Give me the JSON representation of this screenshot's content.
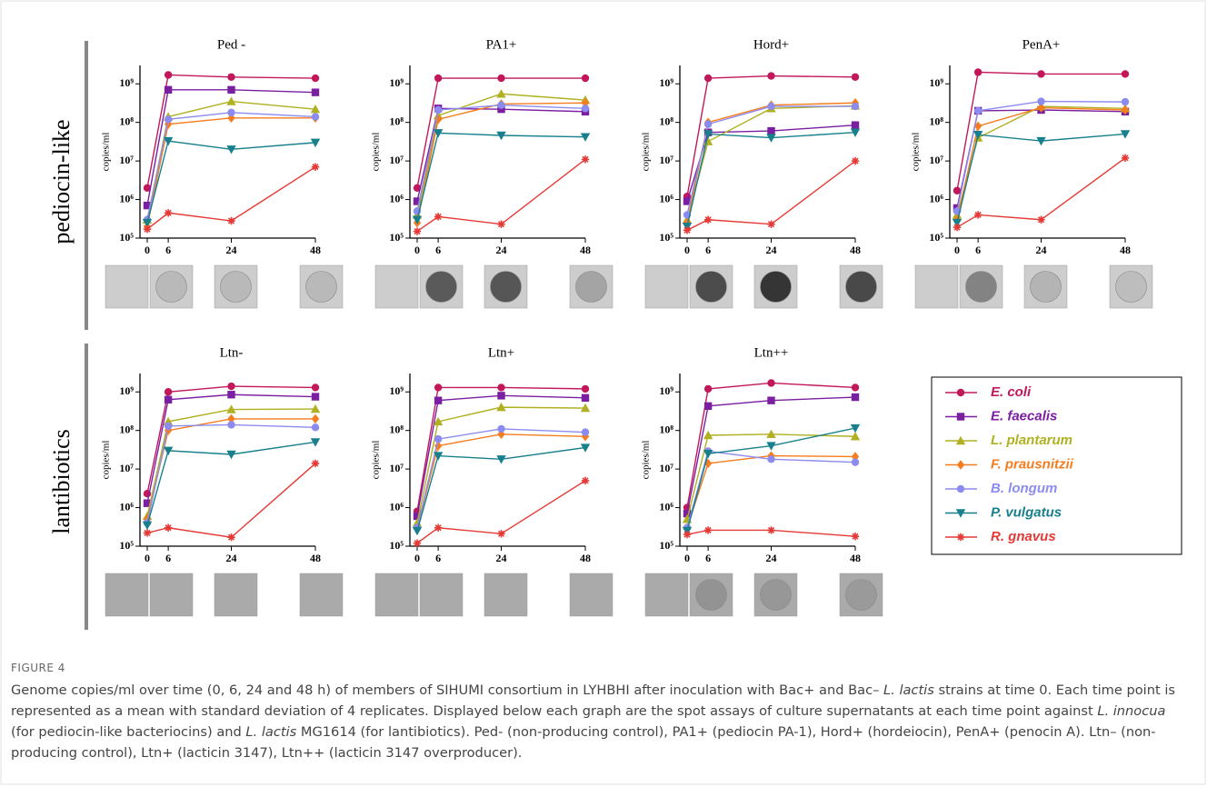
{
  "row_labels": [
    "pediocin-like",
    "lantibiotics"
  ],
  "figure_label": "FIGURE 4",
  "caption": [
    "Genome copies/ml over time (0, 6, 24 and 48 h) of members of SIHUMI consortium in LYHBHI after inoculation with Bac+ and Bac– ",
    "L. lactis",
    " strains at time 0. Each time point is represented as a mean with standard deviation of 4 replicates. Displayed below each graph are the spot assays of culture supernatants at each time point against ",
    "L. innocua",
    " (for pediocin-like bacteriocins) and ",
    "L. lactis",
    " MG1614 (for lantibiotics). Ped- (non-producing control), PA1+ (pediocin PA-1), Hord+ (hordeiocin), PenA+ (penocin A). Ltn– (non-producing control), Ltn+ (lacticin 3147), Ltn++ (lacticin 3147 overproducer)."
  ],
  "chart_data": [
    {
      "type": "line",
      "title": "Ped -",
      "y_label": "copies/ml",
      "log_y": true,
      "x": [
        0,
        6,
        24,
        48
      ],
      "xlim": [
        0,
        48
      ],
      "xticks": [
        0,
        6,
        24,
        48
      ],
      "ylim": [
        100000.0,
        3000000000.0
      ],
      "yticks": [
        {
          "value": 100000.0,
          "label": "10⁵"
        },
        {
          "value": 1000000.0,
          "label": "10⁶"
        },
        {
          "value": 10000000.0,
          "label": "10⁷"
        },
        {
          "value": 100000000.0,
          "label": "10⁸"
        },
        {
          "value": 1000000000.0,
          "label": "10⁹"
        }
      ],
      "series": [
        {
          "name": "E. coli",
          "color": "#c2185b",
          "marker": "circle",
          "values": [
            2000000.0,
            1700000000.0,
            1500000000.0,
            1400000000.0
          ]
        },
        {
          "name": "E. faecalis",
          "color": "#7b1fa2",
          "marker": "square",
          "values": [
            700000.0,
            700000000.0,
            700000000.0,
            600000000.0
          ]
        },
        {
          "name": "L. plantarum",
          "color": "#b0b020",
          "marker": "triangle",
          "values": [
            300000.0,
            140000000.0,
            350000000.0,
            220000000.0
          ]
        },
        {
          "name": "F. prausnitzii",
          "color": "#f57c1f",
          "marker": "diamond",
          "values": [
            200000.0,
            90000000.0,
            130000000.0,
            130000000.0
          ]
        },
        {
          "name": "B. longum",
          "color": "#8c8cf0",
          "marker": "circle",
          "values": [
            300000.0,
            120000000.0,
            180000000.0,
            140000000.0
          ]
        },
        {
          "name": "P. vulgatus",
          "color": "#17808c",
          "marker": "triangle-down",
          "values": [
            250000.0,
            33000000.0,
            20000000.0,
            30000000.0
          ]
        },
        {
          "name": "R. gnavus",
          "color": "#e53935",
          "marker": "star",
          "values": [
            170000.0,
            450000.0,
            280000.0,
            7000000.0
          ]
        }
      ]
    },
    {
      "type": "line",
      "title": "PA1+",
      "y_label": "copies/ml",
      "log_y": true,
      "x": [
        0,
        6,
        24,
        48
      ],
      "xlim": [
        0,
        48
      ],
      "xticks": [
        0,
        6,
        24,
        48
      ],
      "ylim": [
        100000.0,
        3000000000.0
      ],
      "yticks": [
        {
          "value": 100000.0,
          "label": "10⁵"
        },
        {
          "value": 1000000.0,
          "label": "10⁶"
        },
        {
          "value": 10000000.0,
          "label": "10⁷"
        },
        {
          "value": 100000000.0,
          "label": "10⁸"
        },
        {
          "value": 1000000000.0,
          "label": "10⁹"
        }
      ],
      "series": [
        {
          "name": "E. coli",
          "color": "#c2185b",
          "marker": "circle",
          "values": [
            2000000.0,
            1400000000.0,
            1400000000.0,
            1400000000.0
          ]
        },
        {
          "name": "E. faecalis",
          "color": "#7b1fa2",
          "marker": "square",
          "values": [
            900000.0,
            230000000.0,
            220000000.0,
            190000000.0
          ]
        },
        {
          "name": "L. plantarum",
          "color": "#b0b020",
          "marker": "triangle",
          "values": [
            400000.0,
            150000000.0,
            550000000.0,
            380000000.0
          ]
        },
        {
          "name": "F. prausnitzii",
          "color": "#f57c1f",
          "marker": "diamond",
          "values": [
            250000.0,
            120000000.0,
            300000000.0,
            320000000.0
          ]
        },
        {
          "name": "B. longum",
          "color": "#8c8cf0",
          "marker": "circle",
          "values": [
            500000.0,
            210000000.0,
            280000000.0,
            230000000.0
          ]
        },
        {
          "name": "P. vulgatus",
          "color": "#17808c",
          "marker": "triangle-down",
          "values": [
            300000.0,
            53000000.0,
            46000000.0,
            42000000.0
          ]
        },
        {
          "name": "R. gnavus",
          "color": "#e53935",
          "marker": "star",
          "values": [
            150000.0,
            360000.0,
            230000.0,
            11000000.0
          ]
        }
      ]
    },
    {
      "type": "line",
      "title": "Hord+",
      "y_label": "copies/ml",
      "log_y": true,
      "x": [
        0,
        6,
        24,
        48
      ],
      "xlim": [
        0,
        48
      ],
      "xticks": [
        0,
        6,
        24,
        48
      ],
      "ylim": [
        100000.0,
        3000000000.0
      ],
      "yticks": [
        {
          "value": 100000.0,
          "label": "10⁵"
        },
        {
          "value": 1000000.0,
          "label": "10⁶"
        },
        {
          "value": 10000000.0,
          "label": "10⁷"
        },
        {
          "value": 100000000.0,
          "label": "10⁸"
        },
        {
          "value": 1000000000.0,
          "label": "10⁹"
        }
      ],
      "series": [
        {
          "name": "E. coli",
          "color": "#c2185b",
          "marker": "circle",
          "values": [
            1200000.0,
            1400000000.0,
            1600000000.0,
            1500000000.0
          ]
        },
        {
          "name": "E. faecalis",
          "color": "#7b1fa2",
          "marker": "square",
          "values": [
            900000.0,
            55000000.0,
            60000000.0,
            85000000.0
          ]
        },
        {
          "name": "L. plantarum",
          "color": "#b0b020",
          "marker": "triangle",
          "values": [
            300000.0,
            32000000.0,
            230000000.0,
            270000000.0
          ]
        },
        {
          "name": "F. prausnitzii",
          "color": "#f57c1f",
          "marker": "diamond",
          "values": [
            250000.0,
            100000000.0,
            280000000.0,
            320000000.0
          ]
        },
        {
          "name": "B. longum",
          "color": "#8c8cf0",
          "marker": "circle",
          "values": [
            400000.0,
            90000000.0,
            260000000.0,
            260000000.0
          ]
        },
        {
          "name": "P. vulgatus",
          "color": "#17808c",
          "marker": "triangle-down",
          "values": [
            200000.0,
            50000000.0,
            40000000.0,
            55000000.0
          ]
        },
        {
          "name": "R. gnavus",
          "color": "#e53935",
          "marker": "star",
          "values": [
            160000.0,
            300000.0,
            230000.0,
            10000000.0
          ]
        }
      ]
    },
    {
      "type": "line",
      "title": "PenA+",
      "y_label": "copies/ml",
      "log_y": true,
      "x": [
        0,
        6,
        24,
        48
      ],
      "xlim": [
        0,
        48
      ],
      "xticks": [
        0,
        6,
        24,
        48
      ],
      "ylim": [
        100000.0,
        3000000000.0
      ],
      "yticks": [
        {
          "value": 100000.0,
          "label": "10⁵"
        },
        {
          "value": 1000000.0,
          "label": "10⁶"
        },
        {
          "value": 10000000.0,
          "label": "10⁷"
        },
        {
          "value": 100000000.0,
          "label": "10⁸"
        },
        {
          "value": 1000000000.0,
          "label": "10⁹"
        }
      ],
      "series": [
        {
          "name": "E. coli",
          "color": "#c2185b",
          "marker": "circle",
          "values": [
            1700000.0,
            2000000000.0,
            1800000000.0,
            1800000000.0
          ]
        },
        {
          "name": "E. faecalis",
          "color": "#7b1fa2",
          "marker": "square",
          "values": [
            600000.0,
            200000000.0,
            210000000.0,
            190000000.0
          ]
        },
        {
          "name": "L. plantarum",
          "color": "#b0b020",
          "marker": "triangle",
          "values": [
            400000.0,
            40000000.0,
            260000000.0,
            230000000.0
          ]
        },
        {
          "name": "F. prausnitzii",
          "color": "#f57c1f",
          "marker": "diamond",
          "values": [
            300000.0,
            80000000.0,
            240000000.0,
            210000000.0
          ]
        },
        {
          "name": "B. longum",
          "color": "#8c8cf0",
          "marker": "circle",
          "values": [
            500000.0,
            200000000.0,
            350000000.0,
            340000000.0
          ]
        },
        {
          "name": "P. vulgatus",
          "color": "#17808c",
          "marker": "triangle-down",
          "values": [
            250000.0,
            48000000.0,
            33000000.0,
            50000000.0
          ]
        },
        {
          "name": "R. gnavus",
          "color": "#e53935",
          "marker": "star",
          "values": [
            190000.0,
            400000.0,
            300000.0,
            12000000.0
          ]
        }
      ]
    },
    {
      "type": "line",
      "title": "Ltn-",
      "y_label": "copies/ml",
      "log_y": true,
      "x": [
        0,
        6,
        24,
        48
      ],
      "xlim": [
        0,
        48
      ],
      "xticks": [
        0,
        6,
        24,
        48
      ],
      "ylim": [
        100000.0,
        3000000000.0
      ],
      "yticks": [
        {
          "value": 100000.0,
          "label": "10⁵"
        },
        {
          "value": 1000000.0,
          "label": "10⁶"
        },
        {
          "value": 10000000.0,
          "label": "10⁷"
        },
        {
          "value": 100000000.0,
          "label": "10⁸"
        },
        {
          "value": 1000000000.0,
          "label": "10⁹"
        }
      ],
      "series": [
        {
          "name": "E. coli",
          "color": "#c2185b",
          "marker": "circle",
          "values": [
            2300000.0,
            1000000000.0,
            1400000000.0,
            1300000000.0
          ]
        },
        {
          "name": "E. faecalis",
          "color": "#7b1fa2",
          "marker": "square",
          "values": [
            1300000.0,
            630000000.0,
            850000000.0,
            750000000.0
          ]
        },
        {
          "name": "L. plantarum",
          "color": "#b0b020",
          "marker": "triangle",
          "values": [
            600000.0,
            170000000.0,
            350000000.0,
            360000000.0
          ]
        },
        {
          "name": "F. prausnitzii",
          "color": "#f57c1f",
          "marker": "diamond",
          "values": [
            500000.0,
            100000000.0,
            200000000.0,
            200000000.0
          ]
        },
        {
          "name": "B. longum",
          "color": "#8c8cf0",
          "marker": "circle",
          "values": [
            400000.0,
            130000000.0,
            140000000.0,
            120000000.0
          ]
        },
        {
          "name": "P. vulgatus",
          "color": "#17808c",
          "marker": "triangle-down",
          "values": [
            350000.0,
            30000000.0,
            24000000.0,
            50000000.0
          ]
        },
        {
          "name": "R. gnavus",
          "color": "#e53935",
          "marker": "star",
          "values": [
            220000.0,
            300000.0,
            170000.0,
            14000000.0
          ]
        }
      ]
    },
    {
      "type": "line",
      "title": "Ltn+",
      "y_label": "copies/ml",
      "log_y": true,
      "x": [
        0,
        6,
        24,
        48
      ],
      "xlim": [
        0,
        48
      ],
      "xticks": [
        0,
        6,
        24,
        48
      ],
      "ylim": [
        100000.0,
        3000000000.0
      ],
      "yticks": [
        {
          "value": 100000.0,
          "label": "10⁵"
        },
        {
          "value": 1000000.0,
          "label": "10⁶"
        },
        {
          "value": 10000000.0,
          "label": "10⁷"
        },
        {
          "value": 100000000.0,
          "label": "10⁸"
        },
        {
          "value": 1000000000.0,
          "label": "10⁹"
        }
      ],
      "series": [
        {
          "name": "E. coli",
          "color": "#c2185b",
          "marker": "circle",
          "values": [
            800000.0,
            1300000000.0,
            1300000000.0,
            1200000000.0
          ]
        },
        {
          "name": "E. faecalis",
          "color": "#7b1fa2",
          "marker": "square",
          "values": [
            600000.0,
            600000000.0,
            800000000.0,
            700000000.0
          ]
        },
        {
          "name": "L. plantarum",
          "color": "#b0b020",
          "marker": "triangle",
          "values": [
            400000.0,
            170000000.0,
            400000000.0,
            380000000.0
          ]
        },
        {
          "name": "F. prausnitzii",
          "color": "#f57c1f",
          "marker": "diamond",
          "values": [
            300000.0,
            40000000.0,
            80000000.0,
            70000000.0
          ]
        },
        {
          "name": "B. longum",
          "color": "#8c8cf0",
          "marker": "circle",
          "values": [
            300000.0,
            60000000.0,
            110000000.0,
            90000000.0
          ]
        },
        {
          "name": "P. vulgatus",
          "color": "#17808c",
          "marker": "triangle-down",
          "values": [
            250000.0,
            22000000.0,
            18000000.0,
            36000000.0
          ]
        },
        {
          "name": "R. gnavus",
          "color": "#e53935",
          "marker": "star",
          "values": [
            120000.0,
            300000.0,
            210000.0,
            5000000.0
          ]
        }
      ]
    },
    {
      "type": "line",
      "title": "Ltn++",
      "y_label": "copies/ml",
      "log_y": true,
      "x": [
        0,
        6,
        24,
        48
      ],
      "xlim": [
        0,
        48
      ],
      "xticks": [
        0,
        6,
        24,
        48
      ],
      "ylim": [
        100000.0,
        3000000000.0
      ],
      "yticks": [
        {
          "value": 100000.0,
          "label": "10⁵"
        },
        {
          "value": 1000000.0,
          "label": "10⁶"
        },
        {
          "value": 10000000.0,
          "label": "10⁷"
        },
        {
          "value": 100000000.0,
          "label": "10⁸"
        },
        {
          "value": 1000000000.0,
          "label": "10⁹"
        }
      ],
      "series": [
        {
          "name": "E. coli",
          "color": "#c2185b",
          "marker": "circle",
          "values": [
            1000000.0,
            1200000000.0,
            1700000000.0,
            1300000000.0
          ]
        },
        {
          "name": "E. faecalis",
          "color": "#7b1fa2",
          "marker": "square",
          "values": [
            700000.0,
            430000000.0,
            600000000.0,
            730000000.0
          ]
        },
        {
          "name": "L. plantarum",
          "color": "#b0b020",
          "marker": "triangle",
          "values": [
            500000.0,
            75000000.0,
            80000000.0,
            70000000.0
          ]
        },
        {
          "name": "F. prausnitzii",
          "color": "#f57c1f",
          "marker": "diamond",
          "values": [
            300000.0,
            14000000.0,
            22000000.0,
            21000000.0
          ]
        },
        {
          "name": "B. longum",
          "color": "#8c8cf0",
          "marker": "circle",
          "values": [
            300000.0,
            29000000.0,
            18000000.0,
            15000000.0
          ]
        },
        {
          "name": "P. vulgatus",
          "color": "#17808c",
          "marker": "triangle-down",
          "values": [
            250000.0,
            25000000.0,
            40000000.0,
            115000000.0
          ]
        },
        {
          "name": "R. gnavus",
          "color": "#e53935",
          "marker": "star",
          "values": [
            200000.0,
            260000.0,
            260000.0,
            180000.0
          ]
        }
      ]
    }
  ]
}
